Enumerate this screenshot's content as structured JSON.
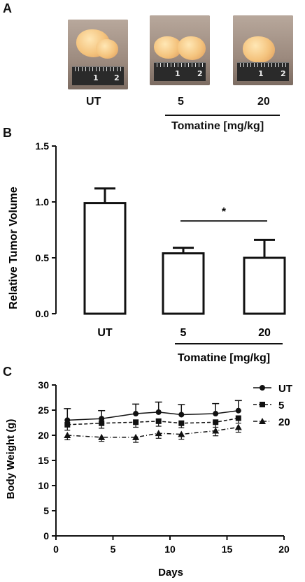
{
  "panels": {
    "a": "A",
    "b": "B",
    "c": "C"
  },
  "photos": [
    {
      "label": "UT",
      "ruler_text": "cm 1 2"
    },
    {
      "label": "5",
      "ruler_text": "cm 1 2"
    },
    {
      "label": "20",
      "ruler_text": "cm 1 2"
    }
  ],
  "panel_a_group_label": "Tomatine [mg/kg]",
  "chart_data": [
    {
      "type": "bar",
      "title": "",
      "ylabel": "Relative Tumor Volume",
      "xlabel": "",
      "categories": [
        "UT",
        "5",
        "20"
      ],
      "values": [
        0.99,
        0.54,
        0.5
      ],
      "errors": [
        0.13,
        0.05,
        0.16
      ],
      "ylim": [
        0.0,
        1.5
      ],
      "yticks": [
        "0.0",
        "0.5",
        "1.0",
        "1.5"
      ],
      "group_label": "Tomatine [mg/kg]",
      "significance": {
        "between": [
          "5",
          "20"
        ],
        "marker": "*"
      }
    },
    {
      "type": "line",
      "title": "",
      "xlabel": "Days",
      "ylabel": "Body Weight (g)",
      "xlim": [
        0,
        20
      ],
      "ylim": [
        0,
        30
      ],
      "xticks": [
        "0",
        "5",
        "10",
        "15",
        "20"
      ],
      "yticks": [
        "0",
        "5",
        "10",
        "15",
        "20",
        "25",
        "30"
      ],
      "x": [
        1,
        4,
        7,
        9,
        11,
        14,
        16
      ],
      "legend_position": "right",
      "series": [
        {
          "name": "UT",
          "marker": "circle",
          "style": "solid",
          "values": [
            23.0,
            23.3,
            24.3,
            24.6,
            24.1,
            24.3,
            24.9
          ],
          "errors": [
            2.3,
            1.6,
            1.9,
            2.0,
            2.0,
            2.0,
            2.0
          ]
        },
        {
          "name": "5",
          "marker": "square",
          "style": "dashed",
          "values": [
            22.1,
            22.4,
            22.6,
            22.8,
            22.4,
            22.6,
            23.4
          ],
          "errors": [
            1.1,
            1.0,
            1.0,
            1.0,
            0.9,
            1.0,
            1.0
          ]
        },
        {
          "name": "20",
          "marker": "triangle",
          "style": "dashdot",
          "values": [
            20.0,
            19.6,
            19.6,
            20.4,
            20.2,
            20.9,
            21.6
          ],
          "errors": [
            0.9,
            0.8,
            1.0,
            1.0,
            1.0,
            1.0,
            1.0
          ]
        }
      ]
    }
  ]
}
